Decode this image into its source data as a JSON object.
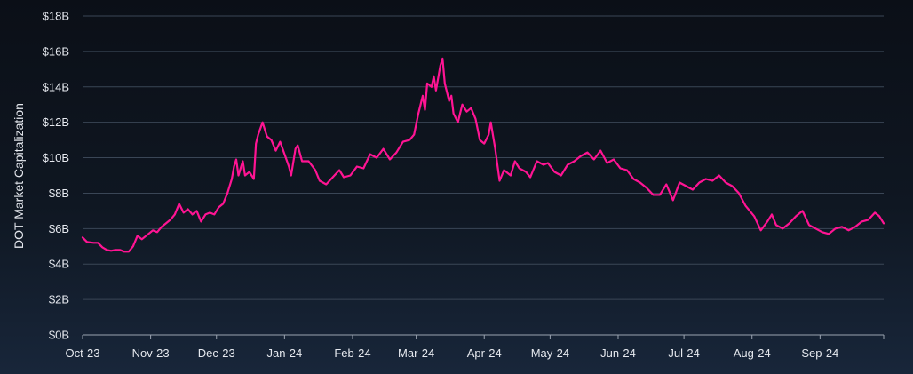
{
  "chart_data": {
    "type": "line",
    "ylabel": "DOT Market Capitalization",
    "ylim": [
      0,
      18
    ],
    "yticks": [
      {
        "value": 0,
        "label": "$0B"
      },
      {
        "value": 2,
        "label": "$2B"
      },
      {
        "value": 4,
        "label": "$4B"
      },
      {
        "value": 6,
        "label": "$6B"
      },
      {
        "value": 8,
        "label": "$8B"
      },
      {
        "value": 10,
        "label": "$10B"
      },
      {
        "value": 12,
        "label": "$12B"
      },
      {
        "value": 14,
        "label": "$14B"
      },
      {
        "value": 16,
        "label": "$16B"
      },
      {
        "value": 18,
        "label": "$18B"
      }
    ],
    "xlim": [
      "2023-10-01",
      "2024-09-30"
    ],
    "xticks": [
      {
        "date": "2023-10-01",
        "label": "Oct-23"
      },
      {
        "date": "2023-11-01",
        "label": "Nov-23"
      },
      {
        "date": "2023-12-01",
        "label": "Dec-23"
      },
      {
        "date": "2024-01-01",
        "label": "Jan-24"
      },
      {
        "date": "2024-02-01",
        "label": "Feb-24"
      },
      {
        "date": "2024-03-01",
        "label": "Mar-24"
      },
      {
        "date": "2024-04-01",
        "label": "Apr-24"
      },
      {
        "date": "2024-05-01",
        "label": "May-24"
      },
      {
        "date": "2024-06-01",
        "label": "Jun-24"
      },
      {
        "date": "2024-07-01",
        "label": "Jul-24"
      },
      {
        "date": "2024-08-01",
        "label": "Aug-24"
      },
      {
        "date": "2024-09-01",
        "label": "Sep-24"
      }
    ],
    "grid": true,
    "series": [
      {
        "color": "#ff1493",
        "points": [
          [
            "2023-10-01",
            5.5
          ],
          [
            "2023-10-03",
            5.25
          ],
          [
            "2023-10-06",
            5.2
          ],
          [
            "2023-10-08",
            5.2
          ],
          [
            "2023-10-10",
            4.95
          ],
          [
            "2023-10-12",
            4.8
          ],
          [
            "2023-10-14",
            4.75
          ],
          [
            "2023-10-16",
            4.8
          ],
          [
            "2023-10-18",
            4.8
          ],
          [
            "2023-10-20",
            4.7
          ],
          [
            "2023-10-22",
            4.7
          ],
          [
            "2023-10-24",
            5.0
          ],
          [
            "2023-10-26",
            5.6
          ],
          [
            "2023-10-28",
            5.4
          ],
          [
            "2023-10-30",
            5.6
          ],
          [
            "2023-11-02",
            5.9
          ],
          [
            "2023-11-04",
            5.8
          ],
          [
            "2023-11-06",
            6.1
          ],
          [
            "2023-11-08",
            6.3
          ],
          [
            "2023-11-10",
            6.5
          ],
          [
            "2023-11-12",
            6.8
          ],
          [
            "2023-11-14",
            7.4
          ],
          [
            "2023-11-16",
            6.9
          ],
          [
            "2023-11-18",
            7.1
          ],
          [
            "2023-11-20",
            6.8
          ],
          [
            "2023-11-22",
            7.0
          ],
          [
            "2023-11-24",
            6.4
          ],
          [
            "2023-11-26",
            6.8
          ],
          [
            "2023-11-28",
            6.9
          ],
          [
            "2023-11-30",
            6.8
          ],
          [
            "2023-12-02",
            7.2
          ],
          [
            "2023-12-04",
            7.4
          ],
          [
            "2023-12-06",
            8.0
          ],
          [
            "2023-12-08",
            8.8
          ],
          [
            "2023-12-09",
            9.5
          ],
          [
            "2023-12-10",
            9.9
          ],
          [
            "2023-12-11",
            9.0
          ],
          [
            "2023-12-12",
            9.4
          ],
          [
            "2023-12-13",
            9.8
          ],
          [
            "2023-12-14",
            9.0
          ],
          [
            "2023-12-16",
            9.2
          ],
          [
            "2023-12-18",
            8.8
          ],
          [
            "2023-12-19",
            10.8
          ],
          [
            "2023-12-20",
            11.3
          ],
          [
            "2023-12-22",
            12.0
          ],
          [
            "2023-12-24",
            11.2
          ],
          [
            "2023-12-26",
            11.0
          ],
          [
            "2023-12-28",
            10.4
          ],
          [
            "2023-12-30",
            10.9
          ],
          [
            "2024-01-01",
            10.2
          ],
          [
            "2024-01-03",
            9.5
          ],
          [
            "2024-01-04",
            9.0
          ],
          [
            "2024-01-06",
            10.5
          ],
          [
            "2024-01-07",
            10.7
          ],
          [
            "2024-01-09",
            9.8
          ],
          [
            "2024-01-12",
            9.8
          ],
          [
            "2024-01-15",
            9.3
          ],
          [
            "2024-01-17",
            8.7
          ],
          [
            "2024-01-20",
            8.5
          ],
          [
            "2024-01-23",
            8.9
          ],
          [
            "2024-01-26",
            9.3
          ],
          [
            "2024-01-28",
            8.9
          ],
          [
            "2024-01-31",
            9.0
          ],
          [
            "2024-02-03",
            9.5
          ],
          [
            "2024-02-06",
            9.4
          ],
          [
            "2024-02-09",
            10.2
          ],
          [
            "2024-02-12",
            10.0
          ],
          [
            "2024-02-15",
            10.5
          ],
          [
            "2024-02-18",
            9.9
          ],
          [
            "2024-02-21",
            10.3
          ],
          [
            "2024-02-24",
            10.9
          ],
          [
            "2024-02-27",
            11.0
          ],
          [
            "2024-02-29",
            11.3
          ],
          [
            "2024-03-02",
            12.5
          ],
          [
            "2024-03-04",
            13.5
          ],
          [
            "2024-03-05",
            12.7
          ],
          [
            "2024-03-06",
            14.2
          ],
          [
            "2024-03-08",
            14.0
          ],
          [
            "2024-03-09",
            14.6
          ],
          [
            "2024-03-10",
            13.8
          ],
          [
            "2024-03-12",
            15.2
          ],
          [
            "2024-03-13",
            15.6
          ],
          [
            "2024-03-14",
            14.2
          ],
          [
            "2024-03-16",
            13.2
          ],
          [
            "2024-03-17",
            13.5
          ],
          [
            "2024-03-18",
            12.5
          ],
          [
            "2024-03-20",
            12.0
          ],
          [
            "2024-03-22",
            13.0
          ],
          [
            "2024-03-24",
            12.6
          ],
          [
            "2024-03-26",
            12.8
          ],
          [
            "2024-03-28",
            12.2
          ],
          [
            "2024-03-30",
            11.0
          ],
          [
            "2024-04-01",
            10.8
          ],
          [
            "2024-04-03",
            11.3
          ],
          [
            "2024-04-04",
            12.0
          ],
          [
            "2024-04-06",
            10.5
          ],
          [
            "2024-04-08",
            8.7
          ],
          [
            "2024-04-10",
            9.3
          ],
          [
            "2024-04-13",
            9.0
          ],
          [
            "2024-04-15",
            9.8
          ],
          [
            "2024-04-17",
            9.4
          ],
          [
            "2024-04-20",
            9.2
          ],
          [
            "2024-04-22",
            8.9
          ],
          [
            "2024-04-25",
            9.8
          ],
          [
            "2024-04-28",
            9.6
          ],
          [
            "2024-04-30",
            9.7
          ],
          [
            "2024-05-03",
            9.2
          ],
          [
            "2024-05-06",
            9.0
          ],
          [
            "2024-05-09",
            9.6
          ],
          [
            "2024-05-12",
            9.8
          ],
          [
            "2024-05-15",
            10.1
          ],
          [
            "2024-05-18",
            10.3
          ],
          [
            "2024-05-21",
            9.9
          ],
          [
            "2024-05-24",
            10.4
          ],
          [
            "2024-05-27",
            9.7
          ],
          [
            "2024-05-30",
            9.9
          ],
          [
            "2024-06-02",
            9.4
          ],
          [
            "2024-06-05",
            9.3
          ],
          [
            "2024-06-08",
            8.8
          ],
          [
            "2024-06-11",
            8.6
          ],
          [
            "2024-06-14",
            8.3
          ],
          [
            "2024-06-17",
            7.9
          ],
          [
            "2024-06-20",
            7.9
          ],
          [
            "2024-06-23",
            8.5
          ],
          [
            "2024-06-26",
            7.6
          ],
          [
            "2024-06-29",
            8.6
          ],
          [
            "2024-07-02",
            8.4
          ],
          [
            "2024-07-05",
            8.2
          ],
          [
            "2024-07-08",
            8.6
          ],
          [
            "2024-07-11",
            8.8
          ],
          [
            "2024-07-14",
            8.7
          ],
          [
            "2024-07-17",
            9.0
          ],
          [
            "2024-07-20",
            8.6
          ],
          [
            "2024-07-23",
            8.4
          ],
          [
            "2024-07-26",
            8.0
          ],
          [
            "2024-07-29",
            7.3
          ],
          [
            "2024-08-02",
            6.7
          ],
          [
            "2024-08-05",
            5.9
          ],
          [
            "2024-08-08",
            6.4
          ],
          [
            "2024-08-10",
            6.8
          ],
          [
            "2024-08-12",
            6.2
          ],
          [
            "2024-08-15",
            6.0
          ],
          [
            "2024-08-18",
            6.3
          ],
          [
            "2024-08-21",
            6.7
          ],
          [
            "2024-08-24",
            7.0
          ],
          [
            "2024-08-27",
            6.2
          ],
          [
            "2024-08-30",
            6.0
          ],
          [
            "2024-09-02",
            5.8
          ],
          [
            "2024-09-05",
            5.7
          ],
          [
            "2024-09-08",
            6.0
          ],
          [
            "2024-09-11",
            6.1
          ],
          [
            "2024-09-14",
            5.9
          ],
          [
            "2024-09-17",
            6.1
          ],
          [
            "2024-09-20",
            6.4
          ],
          [
            "2024-09-23",
            6.5
          ],
          [
            "2024-09-26",
            6.9
          ],
          [
            "2024-09-28",
            6.7
          ],
          [
            "2024-09-30",
            6.3
          ]
        ]
      }
    ]
  }
}
